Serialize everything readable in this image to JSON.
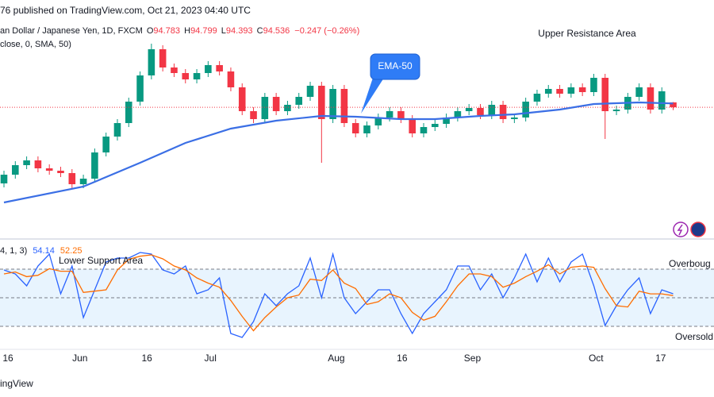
{
  "header": {
    "publisher": "76 published on TradingView.com, Oct 21, 2023 04:40 UTC",
    "footer": "ingView"
  },
  "chart_data": [
    {
      "type": "candlestick",
      "symbol": "an Dollar / Japanese Yen, 1D, FXCM",
      "ohlc_letters": [
        "O",
        "H",
        "L",
        "C"
      ],
      "change": "−0.247 (−0.26%)",
      "annotations": [
        "Upper Resistance Area",
        "Lower Support Area",
        "EMA-50"
      ],
      "up_color": "#089981",
      "down_color": "#f23645",
      "xlim": [
        -0.35,
        62.6
      ],
      "xticks": [
        {
          "value": 0.35,
          "label": "16"
        },
        {
          "value": 6.7,
          "label": "Jun"
        },
        {
          "value": 12.6,
          "label": "16"
        },
        {
          "value": 18.2,
          "label": "Jul"
        },
        {
          "value": 29.3,
          "label": "Aug"
        },
        {
          "value": 35.1,
          "label": "16"
        },
        {
          "value": 41.3,
          "label": "Sep"
        },
        {
          "value": 52.2,
          "label": "Oct"
        },
        {
          "value": 57.9,
          "label": "17"
        }
      ],
      "ylim": [
        88.34,
        98.94
      ],
      "open": [
        90.7,
        91.14,
        91.62,
        91.86,
        91.46,
        91.34,
        91.22,
        90.66,
        90.94,
        92.26,
        93.06,
        93.74,
        94.82,
        96.14,
        97.46,
        96.54,
        96.26,
        95.94,
        96.26,
        96.66,
        96.34,
        95.54,
        94.34,
        93.94,
        95.06,
        94.34,
        94.66,
        95.06,
        95.62,
        93.94,
        95.46,
        93.74,
        93.22,
        93.62,
        94.02,
        94.34,
        93.94,
        93.22,
        93.54,
        93.7,
        94.02,
        94.34,
        94.5,
        94.14,
        94.66,
        93.94,
        94.02,
        94.82,
        95.22,
        95.46,
        95.22,
        95.54,
        95.3,
        96.02,
        94.34,
        94.42,
        95.06,
        95.54,
        94.42,
        94.783
      ],
      "high": [
        91.34,
        91.82,
        92.06,
        92.06,
        91.66,
        91.54,
        91.42,
        91.14,
        92.46,
        93.26,
        93.94,
        95.02,
        96.34,
        97.74,
        97.66,
        96.74,
        96.46,
        96.46,
        96.86,
        96.86,
        96.54,
        95.74,
        94.54,
        95.26,
        95.26,
        94.86,
        95.26,
        95.82,
        95.82,
        95.66,
        95.66,
        93.94,
        93.82,
        94.22,
        94.54,
        94.54,
        94.14,
        93.74,
        93.9,
        94.22,
        94.54,
        94.7,
        94.7,
        94.86,
        94.86,
        94.22,
        95.02,
        95.42,
        95.66,
        95.66,
        95.74,
        95.74,
        96.22,
        96.22,
        94.62,
        95.26,
        95.74,
        95.74,
        95.54,
        94.799
      ],
      "low": [
        90.5,
        90.94,
        91.42,
        91.26,
        91.14,
        91.02,
        90.46,
        90.46,
        90.74,
        92.06,
        92.86,
        93.54,
        94.62,
        95.94,
        96.34,
        96.06,
        95.74,
        95.74,
        96.06,
        96.14,
        95.34,
        94.14,
        93.74,
        93.74,
        94.14,
        94.14,
        94.46,
        94.86,
        91.74,
        93.74,
        93.54,
        93.02,
        93.02,
        93.42,
        93.82,
        93.74,
        93.02,
        93.02,
        93.34,
        93.5,
        93.82,
        94.14,
        93.94,
        93.94,
        93.74,
        93.74,
        93.82,
        94.62,
        95.02,
        95.02,
        95.02,
        95.1,
        95.1,
        92.94,
        94.14,
        94.22,
        94.86,
        94.22,
        94.22,
        94.393
      ],
      "close": [
        91.14,
        91.62,
        91.86,
        91.46,
        91.34,
        91.22,
        90.66,
        90.94,
        92.26,
        93.06,
        93.74,
        94.82,
        96.14,
        97.46,
        96.54,
        96.26,
        95.94,
        96.26,
        96.66,
        96.34,
        95.54,
        94.34,
        93.94,
        95.06,
        94.34,
        94.66,
        95.06,
        95.62,
        93.94,
        95.46,
        93.74,
        93.22,
        93.62,
        94.02,
        94.34,
        93.94,
        93.22,
        93.54,
        93.7,
        94.02,
        94.34,
        94.5,
        94.14,
        94.66,
        93.94,
        94.02,
        94.82,
        95.22,
        95.46,
        95.22,
        95.54,
        95.3,
        96.02,
        94.34,
        94.42,
        95.06,
        95.54,
        94.42,
        95.34,
        94.536
      ],
      "series": [
        {
          "name": "close, 0, SMA, 50)",
          "color": "#3b6fe5",
          "x": [
            0,
            7,
            12,
            16,
            20,
            24,
            28,
            31,
            35,
            38,
            42,
            45,
            49,
            52,
            56,
            59
          ],
          "values": [
            89.74,
            90.54,
            91.74,
            92.74,
            93.46,
            93.86,
            94.1,
            94.06,
            93.94,
            93.94,
            94.1,
            94.18,
            94.42,
            94.7,
            94.78,
            94.728
          ]
        }
      ]
    },
    {
      "type": "line",
      "legend": "4, 1, 3)",
      "ylim": [
        0,
        100
      ],
      "yticks": [
        20,
        50,
        80
      ],
      "band_color": "#2196f3",
      "band_labels": [
        "Oversold",
        "Overboug"
      ],
      "series": [
        {
          "color": "#2962ff",
          "values": [
            79.2,
            75,
            62.5,
            83.3,
            95.8,
            54.2,
            83.3,
            29.2,
            58.3,
            87.5,
            91.7,
            91.7,
            97.5,
            95.8,
            79.2,
            75,
            83.3,
            54.2,
            58.3,
            70.8,
            12.5,
            8.3,
            25,
            54.2,
            41.7,
            54.2,
            62.5,
            91.7,
            50,
            95.8,
            50,
            33.3,
            45.8,
            58.3,
            58.3,
            33.3,
            12.5,
            33.3,
            45.8,
            58.3,
            83.3,
            83.3,
            58.3,
            75,
            50,
            70.8,
            95.8,
            66.7,
            91.7,
            66.7,
            87.5,
            95.8,
            62.5,
            20.8,
            41.7,
            58.3,
            70.8,
            33.3,
            58.3,
            54.14
          ]
        },
        {
          "color": "#ff6d00",
          "values": [
            75,
            77.1,
            72.2,
            73.6,
            80.5,
            77.8,
            77.8,
            55.6,
            56.9,
            58.3,
            79.2,
            90.3,
            93.6,
            95,
            90.8,
            83.3,
            79.2,
            70.8,
            65.3,
            61.1,
            47.2,
            30.5,
            15.3,
            29.2,
            40.3,
            50,
            52.8,
            69.5,
            68.1,
            79.2,
            65.3,
            59.7,
            43,
            45.8,
            54.1,
            50,
            34.7,
            26.4,
            30.5,
            45.8,
            62.5,
            75,
            75,
            72.2,
            61.1,
            65.3,
            72.2,
            77.8,
            84.7,
            75,
            82,
            83.3,
            81.9,
            59.7,
            41.7,
            40.3,
            56.9,
            54.1,
            54.1,
            52.25
          ]
        }
      ]
    }
  ]
}
